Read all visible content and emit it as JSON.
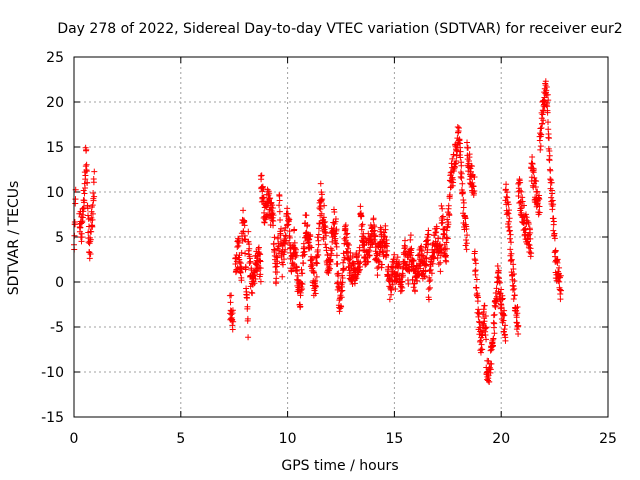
{
  "chart_data": {
    "type": "scatter",
    "title": "Day 278 of 2022, Sidereal Day-to-day VTEC variation (SDTVAR) for receiver eur2",
    "xlabel": "GPS time / hours",
    "ylabel": "SDTVAR / TECUs",
    "xlim": [
      0,
      25
    ],
    "ylim": [
      -15,
      25
    ],
    "xticks": [
      0,
      5,
      10,
      15,
      20,
      25
    ],
    "yticks": [
      -15,
      -10,
      -5,
      0,
      5,
      10,
      15,
      20,
      25
    ],
    "grid": true,
    "marker": "+",
    "color": "#ff0000",
    "segments": [
      [
        0.0,
        0.08,
        [
          [
            0,
            3
          ],
          [
            1,
            11
          ],
          [
            2,
            10
          ],
          [
            3,
            3
          ]
        ]
      ],
      [
        0.25,
        0.95,
        [
          [
            0,
            7
          ],
          [
            0.15,
            6
          ],
          [
            0.3,
            9
          ],
          [
            0.45,
            14.5
          ],
          [
            0.55,
            8
          ],
          [
            0.7,
            3.5
          ],
          [
            0.85,
            7
          ],
          [
            1,
            11
          ]
        ]
      ],
      [
        7.3,
        7.45,
        [
          [
            0,
            -2.5
          ],
          [
            1,
            -4
          ]
        ]
      ],
      [
        7.55,
        7.85,
        [
          [
            0,
            2
          ],
          [
            0.5,
            3.5
          ],
          [
            1,
            1
          ]
        ]
      ],
      [
        7.85,
        8.15,
        [
          [
            0,
            4
          ],
          [
            0.25,
            7
          ],
          [
            0.5,
            5
          ],
          [
            0.75,
            -2
          ],
          [
            1,
            -5
          ]
        ]
      ],
      [
        8.15,
        8.75,
        [
          [
            0,
            5
          ],
          [
            0.2,
            1
          ],
          [
            0.4,
            -1
          ],
          [
            0.6,
            2
          ],
          [
            0.8,
            3
          ],
          [
            1,
            1
          ]
        ]
      ],
      [
        8.75,
        9.3,
        [
          [
            0,
            11
          ],
          [
            0.3,
            8
          ],
          [
            0.6,
            9
          ],
          [
            1,
            7
          ]
        ]
      ],
      [
        9.3,
        9.6,
        [
          [
            0,
            8
          ],
          [
            0.5,
            1
          ],
          [
            1,
            5
          ]
        ]
      ],
      [
        9.6,
        10.3,
        [
          [
            0,
            9
          ],
          [
            0.2,
            2
          ],
          [
            0.4,
            5
          ],
          [
            0.6,
            8
          ],
          [
            0.8,
            2
          ],
          [
            1,
            3
          ]
        ]
      ],
      [
        10.3,
        11.0,
        [
          [
            0,
            5
          ],
          [
            0.2,
            1
          ],
          [
            0.4,
            -2
          ],
          [
            0.6,
            2
          ],
          [
            0.8,
            7
          ],
          [
            1,
            3
          ]
        ]
      ],
      [
        11.0,
        11.7,
        [
          [
            0,
            5
          ],
          [
            0.2,
            2
          ],
          [
            0.4,
            -1
          ],
          [
            0.6,
            4
          ],
          [
            0.8,
            10
          ],
          [
            1,
            5
          ]
        ]
      ],
      [
        11.7,
        12.3,
        [
          [
            0,
            8
          ],
          [
            0.25,
            2
          ],
          [
            0.5,
            3
          ],
          [
            0.75,
            7
          ],
          [
            1,
            5
          ]
        ]
      ],
      [
        12.3,
        12.7,
        [
          [
            0,
            2
          ],
          [
            0.3,
            -2
          ],
          [
            0.6,
            -1
          ],
          [
            1,
            5
          ]
        ]
      ],
      [
        12.7,
        13.4,
        [
          [
            0,
            6
          ],
          [
            0.3,
            2
          ],
          [
            0.6,
            1
          ],
          [
            1,
            3
          ]
        ]
      ],
      [
        13.4,
        14.4,
        [
          [
            0,
            8
          ],
          [
            0.2,
            3
          ],
          [
            0.4,
            4
          ],
          [
            0.6,
            6
          ],
          [
            0.8,
            2
          ],
          [
            1,
            6
          ]
        ]
      ],
      [
        14.4,
        15.0,
        [
          [
            0,
            3
          ],
          [
            0.3,
            5
          ],
          [
            0.6,
            -1
          ],
          [
            1,
            2
          ]
        ]
      ],
      [
        15.0,
        15.8,
        [
          [
            0,
            0
          ],
          [
            0.2,
            2
          ],
          [
            0.4,
            -1
          ],
          [
            0.6,
            4
          ],
          [
            0.8,
            1
          ],
          [
            1,
            5
          ]
        ]
      ],
      [
        15.8,
        16.6,
        [
          [
            0,
            2
          ],
          [
            0.25,
            0
          ],
          [
            0.5,
            3
          ],
          [
            0.75,
            1
          ],
          [
            1,
            6
          ]
        ]
      ],
      [
        16.6,
        17.2,
        [
          [
            0,
            -1
          ],
          [
            0.3,
            3
          ],
          [
            0.6,
            5
          ],
          [
            1,
            2
          ]
        ]
      ],
      [
        17.2,
        17.6,
        [
          [
            0,
            8
          ],
          [
            0.5,
            3
          ],
          [
            1,
            10
          ]
        ]
      ],
      [
        17.6,
        18.4,
        [
          [
            0,
            11
          ],
          [
            0.25,
            13
          ],
          [
            0.5,
            17
          ],
          [
            0.75,
            9
          ],
          [
            1,
            4
          ]
        ]
      ],
      [
        18.4,
        18.75,
        [
          [
            0,
            14
          ],
          [
            0.5,
            12
          ],
          [
            1,
            11
          ]
        ]
      ],
      [
        18.75,
        19.3,
        [
          [
            0,
            3
          ],
          [
            0.2,
            -1
          ],
          [
            0.4,
            -5
          ],
          [
            0.6,
            -7
          ],
          [
            0.8,
            -3
          ],
          [
            1,
            -5
          ]
        ]
      ],
      [
        19.3,
        19.7,
        [
          [
            0,
            -9
          ],
          [
            0.4,
            -10.5
          ],
          [
            0.7,
            -7
          ],
          [
            1,
            -4
          ]
        ]
      ],
      [
        19.7,
        20.2,
        [
          [
            0,
            -3
          ],
          [
            0.3,
            1
          ],
          [
            0.6,
            -2
          ],
          [
            1,
            -6
          ]
        ]
      ],
      [
        20.2,
        20.8,
        [
          [
            0,
            10
          ],
          [
            0.25,
            7
          ],
          [
            0.5,
            2
          ],
          [
            0.75,
            -2
          ],
          [
            1,
            -5
          ]
        ]
      ],
      [
        20.8,
        21.4,
        [
          [
            0,
            11
          ],
          [
            0.3,
            8
          ],
          [
            0.6,
            6
          ],
          [
            1,
            4
          ]
        ]
      ],
      [
        21.4,
        21.8,
        [
          [
            0,
            13
          ],
          [
            0.5,
            10
          ],
          [
            1,
            8
          ]
        ]
      ],
      [
        21.8,
        22.2,
        [
          [
            0,
            15
          ],
          [
            0.25,
            18
          ],
          [
            0.5,
            20
          ],
          [
            0.75,
            22
          ],
          [
            1,
            19
          ]
        ]
      ],
      [
        22.2,
        22.55,
        [
          [
            0,
            16
          ],
          [
            0.3,
            12
          ],
          [
            0.6,
            8
          ],
          [
            1,
            3
          ]
        ]
      ],
      [
        22.55,
        22.8,
        [
          [
            0,
            2
          ],
          [
            0.4,
            1
          ],
          [
            1,
            -1
          ]
        ]
      ]
    ]
  }
}
